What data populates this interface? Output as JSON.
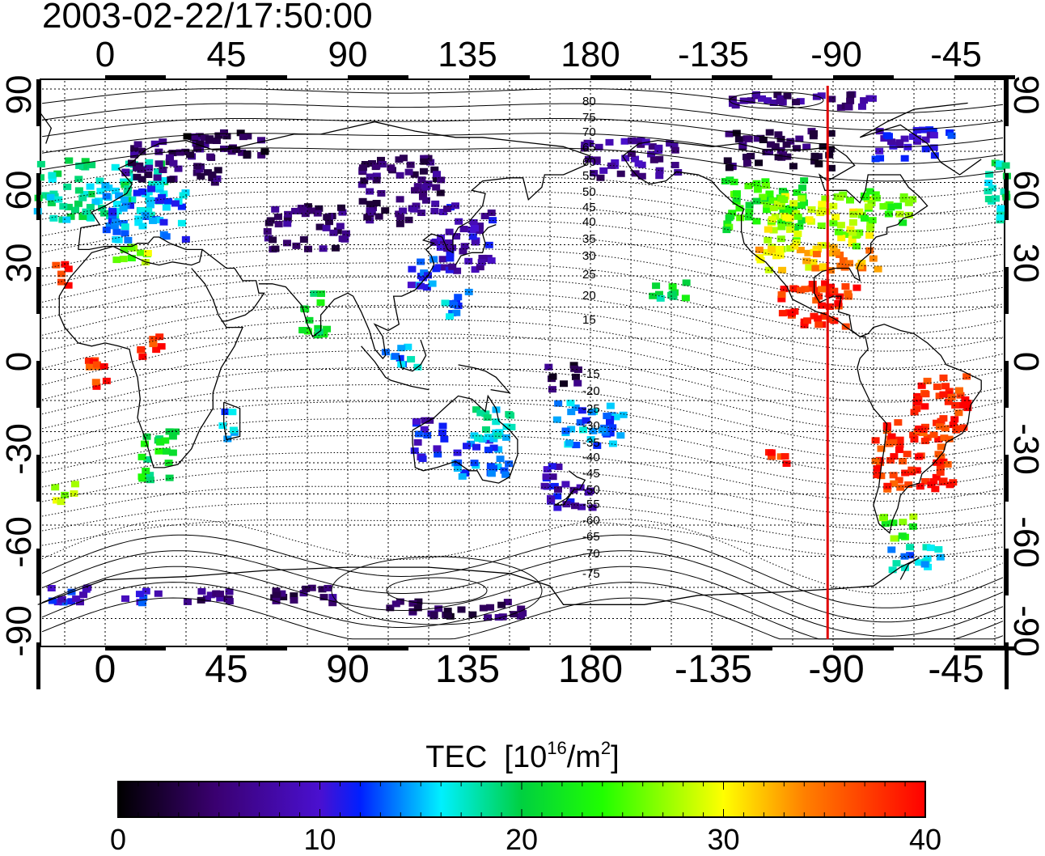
{
  "timestamp": "2003-02-22/17:50:00",
  "lon_ticks": [
    "0",
    "45",
    "90",
    "135",
    "180",
    "-135",
    "-90",
    "-45"
  ],
  "lat_ticks": [
    "90",
    "60",
    "30",
    "0",
    "-30",
    "-60",
    "-90"
  ],
  "colorbar": {
    "title": "TEC",
    "unit_prefix": "[10",
    "unit_exp": "16",
    "unit_mid": "/m",
    "unit_exp2": "2",
    "unit_suffix": "]",
    "labels": [
      "0",
      "10",
      "20",
      "30",
      "40"
    ],
    "range": [
      0,
      40
    ]
  },
  "contour_labels_north": [
    "80",
    "75",
    "70",
    "65",
    "60",
    "55",
    "50",
    "45",
    "40",
    "35",
    "30",
    "25",
    "20",
    "15"
  ],
  "contour_labels_south": [
    "-15",
    "-20",
    "-25",
    "-30",
    "-35",
    "-40",
    "-45",
    "-50",
    "-55",
    "-60",
    "-65",
    "-70",
    "-75"
  ],
  "meridian_marker_lon": -92,
  "colors": {
    "marker": "#e00000",
    "background": "#ffffff"
  },
  "regions": [
    {
      "lon": -5,
      "lat": 55,
      "w": 55,
      "h": 20,
      "tec": 18
    },
    {
      "lon": 15,
      "lat": 48,
      "w": 30,
      "h": 18,
      "tec": 14
    },
    {
      "lon": 25,
      "lat": 65,
      "w": 35,
      "h": 15,
      "tec": 5
    },
    {
      "lon": 45,
      "lat": 70,
      "w": 30,
      "h": 8,
      "tec": 3
    },
    {
      "lon": 10,
      "lat": 35,
      "w": 12,
      "h": 8,
      "tec": 27
    },
    {
      "lon": -15,
      "lat": 28,
      "w": 8,
      "h": 8,
      "tec": 38
    },
    {
      "lon": 75,
      "lat": 43,
      "w": 30,
      "h": 14,
      "tec": 5
    },
    {
      "lon": 110,
      "lat": 55,
      "w": 30,
      "h": 22,
      "tec": 5
    },
    {
      "lon": 133,
      "lat": 40,
      "w": 22,
      "h": 22,
      "tec": 9
    },
    {
      "lon": 118,
      "lat": 28,
      "w": 12,
      "h": 10,
      "tec": 12
    },
    {
      "lon": 130,
      "lat": 18,
      "w": 10,
      "h": 10,
      "tec": 14
    },
    {
      "lon": 78,
      "lat": 15,
      "w": 10,
      "h": 14,
      "tec": 21
    },
    {
      "lon": 110,
      "lat": 2,
      "w": 12,
      "h": 8,
      "tec": 15
    },
    {
      "lon": 20,
      "lat": -30,
      "w": 14,
      "h": 16,
      "tec": 21
    },
    {
      "lon": -3,
      "lat": -3,
      "w": 8,
      "h": 12,
      "tec": 38
    },
    {
      "lon": 18,
      "lat": 5,
      "w": 10,
      "h": 8,
      "tec": 38
    },
    {
      "lon": 45,
      "lat": -20,
      "w": 6,
      "h": 10,
      "tec": 15
    },
    {
      "lon": 120,
      "lat": -25,
      "w": 12,
      "h": 14,
      "tec": 10
    },
    {
      "lon": 140,
      "lat": -30,
      "w": 20,
      "h": 14,
      "tec": 13
    },
    {
      "lon": 145,
      "lat": -20,
      "w": 18,
      "h": 10,
      "tec": 17
    },
    {
      "lon": 172,
      "lat": -40,
      "w": 18,
      "h": 14,
      "tec": 9
    },
    {
      "lon": 180,
      "lat": -20,
      "w": 25,
      "h": 14,
      "tec": 14
    },
    {
      "lon": 170,
      "lat": -5,
      "w": 12,
      "h": 8,
      "tec": 4
    },
    {
      "lon": -165,
      "lat": 65,
      "w": 35,
      "h": 12,
      "tec": 7
    },
    {
      "lon": -115,
      "lat": 50,
      "w": 30,
      "h": 18,
      "tec": 23
    },
    {
      "lon": -95,
      "lat": 45,
      "w": 40,
      "h": 18,
      "tec": 28
    },
    {
      "lon": -105,
      "lat": 33,
      "w": 25,
      "h": 8,
      "tec": 31
    },
    {
      "lon": -85,
      "lat": 33,
      "w": 25,
      "h": 8,
      "tec": 34
    },
    {
      "lon": -95,
      "lat": 18,
      "w": 30,
      "h": 15,
      "tec": 38
    },
    {
      "lon": -70,
      "lat": 50,
      "w": 20,
      "h": 12,
      "tec": 25
    },
    {
      "lon": -110,
      "lat": 68,
      "w": 40,
      "h": 12,
      "tec": 4
    },
    {
      "lon": -60,
      "lat": 70,
      "w": 30,
      "h": 10,
      "tec": 10
    },
    {
      "lon": -60,
      "lat": -30,
      "w": 30,
      "h": 22,
      "tec": 38
    },
    {
      "lon": -50,
      "lat": -15,
      "w": 20,
      "h": 22,
      "tec": 38
    },
    {
      "lon": -65,
      "lat": -53,
      "w": 14,
      "h": 8,
      "tec": 25
    },
    {
      "lon": -60,
      "lat": -63,
      "w": 20,
      "h": 8,
      "tec": 15
    },
    {
      "lon": -150,
      "lat": 23,
      "w": 14,
      "h": 8,
      "tec": 20
    },
    {
      "lon": -110,
      "lat": -30,
      "w": 8,
      "h": 6,
      "tec": 38
    },
    {
      "lon": -15,
      "lat": -42,
      "w": 8,
      "h": 6,
      "tec": 27
    },
    {
      "lon": 130,
      "lat": -80,
      "w": 50,
      "h": 6,
      "tec": 4
    },
    {
      "lon": 60,
      "lat": -75,
      "w": 60,
      "h": 5,
      "tec": 5
    },
    {
      "lon": 0,
      "lat": -75,
      "w": 40,
      "h": 5,
      "tec": 11
    },
    {
      "lon": -100,
      "lat": 84,
      "w": 60,
      "h": 5,
      "tec": 6
    }
  ]
}
